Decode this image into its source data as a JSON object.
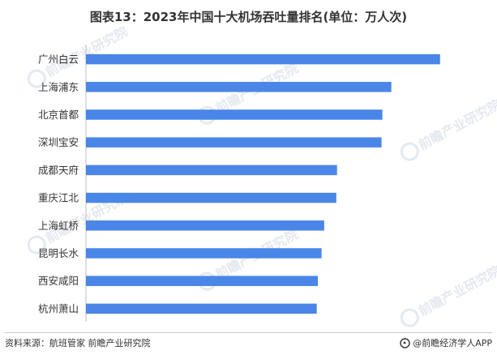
{
  "title": "图表13：2023年中国十大机场吞吐量排名(单位：万人次)",
  "chart_data": {
    "type": "bar",
    "orientation": "horizontal",
    "categories": [
      "广州白云",
      "上海浦东",
      "北京首都",
      "深圳宝安",
      "成都天府",
      "重庆江北",
      "上海虹桥",
      "昆明长水",
      "西安咸阳",
      "杭州萧山"
    ],
    "values": [
      6317,
      5448,
      5288,
      5273,
      4479,
      4466,
      4250,
      4203,
      4137,
      4117
    ],
    "xlim": [
      0,
      7000
    ],
    "bar_color": "#4a86e8",
    "grid": false,
    "x_axis_visible": false
  },
  "footer": {
    "source": "资料来源：航班管家 前瞻产业研究院",
    "credit": "@前瞻经济学人APP"
  },
  "watermark": {
    "text": "前瞻产业研究院",
    "color": "#cfd8e3"
  }
}
